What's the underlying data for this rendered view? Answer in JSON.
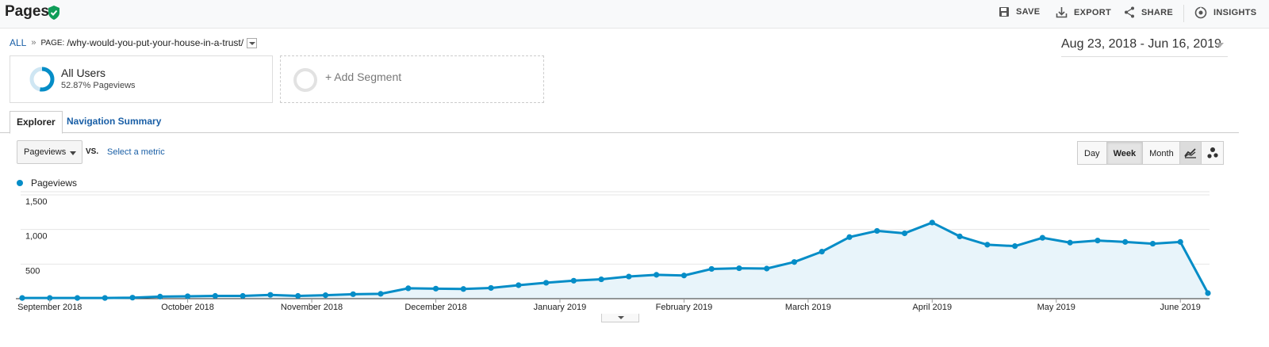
{
  "header": {
    "title": "Pages",
    "actions": {
      "save": "SAVE",
      "export": "EXPORT",
      "share": "SHARE",
      "insights": "INSIGHTS"
    }
  },
  "breadcrumb": {
    "all": "ALL",
    "separator": "»",
    "label": "PAGE:",
    "page": "/why-would-you-put-your-house-in-a-trust/"
  },
  "date_range": "Aug 23, 2018 - Jun 16, 2019",
  "segments": [
    {
      "name": "All Users",
      "detail": "52.87% Pageviews",
      "percent": 52.87
    },
    {
      "name": "+ Add Segment"
    }
  ],
  "tabs": [
    "Explorer",
    "Navigation Summary"
  ],
  "controls": {
    "metric": "Pageviews",
    "vs": "VS.",
    "select_metric": "Select a metric",
    "granularity": [
      "Day",
      "Week",
      "Month"
    ],
    "granularity_selected": "Week"
  },
  "colors": {
    "series": "#058dc7",
    "fill": "#e8f4fa",
    "accent_green": "#0f9d58",
    "link": "#1a5fa6"
  },
  "icons": [
    "verified-check-icon",
    "save-icon",
    "export-icon",
    "share-icon",
    "insights-icon",
    "line-chart-icon",
    "motion-chart-icon"
  ],
  "chart_data": {
    "type": "area",
    "legend": [
      "Pageviews"
    ],
    "y_ticks": [
      "1,500",
      "1,000",
      "500"
    ],
    "y_tick_values": [
      1500,
      1000,
      500
    ],
    "ylim": [
      0,
      1500
    ],
    "x_tick_labels": [
      "September 2018",
      "October 2018",
      "November 2018",
      "December 2018",
      "January 2019",
      "February 2019",
      "March 2019",
      "April 2019",
      "May 2019",
      "June 2019"
    ],
    "x_tick_week_index": [
      1,
      6,
      10.5,
      15,
      19.5,
      24,
      28.5,
      33,
      37.5,
      42
    ],
    "series": [
      {
        "name": "Pageviews",
        "values": [
          10,
          10,
          10,
          10,
          15,
          30,
          35,
          40,
          40,
          55,
          40,
          50,
          65,
          70,
          150,
          145,
          140,
          155,
          195,
          230,
          260,
          280,
          320,
          345,
          335,
          430,
          440,
          435,
          530,
          680,
          890,
          980,
          945,
          1100,
          900,
          780,
          760,
          880,
          810,
          840,
          820,
          795,
          820,
          80
        ]
      }
    ]
  }
}
